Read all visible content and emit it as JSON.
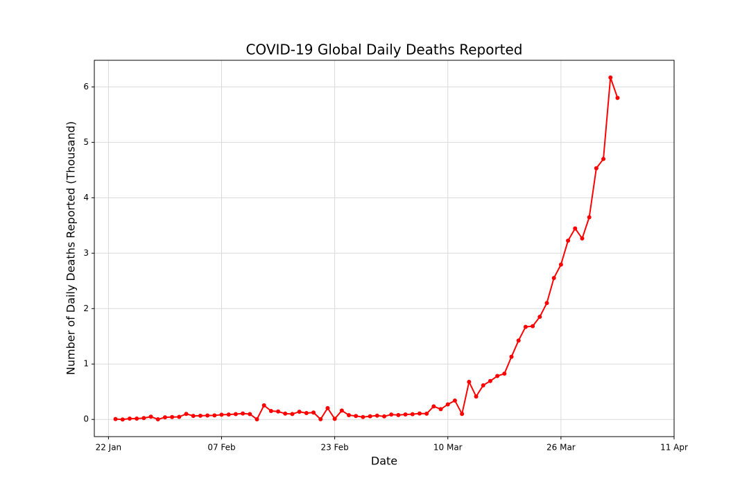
{
  "chart_data": {
    "type": "line",
    "title": "COVID-19 Global Daily Deaths Reported",
    "xlabel": "Date",
    "ylabel": "Number of Daily Deaths Reported (Thousand)",
    "x": [
      "01-23",
      "01-24",
      "01-25",
      "01-26",
      "01-27",
      "01-28",
      "01-29",
      "01-30",
      "01-31",
      "02-01",
      "02-02",
      "02-03",
      "02-04",
      "02-05",
      "02-06",
      "02-07",
      "02-08",
      "02-09",
      "02-10",
      "02-11",
      "02-12",
      "02-13",
      "02-14",
      "02-15",
      "02-16",
      "02-17",
      "02-18",
      "02-19",
      "02-20",
      "02-21",
      "02-22",
      "02-23",
      "02-24",
      "02-25",
      "02-26",
      "02-27",
      "02-28",
      "02-29",
      "03-01",
      "03-02",
      "03-03",
      "03-04",
      "03-05",
      "03-06",
      "03-07",
      "03-08",
      "03-09",
      "03-10",
      "03-11",
      "03-12",
      "03-13",
      "03-14",
      "03-15",
      "03-16",
      "03-17",
      "03-18",
      "03-19",
      "03-20",
      "03-21",
      "03-22",
      "03-23",
      "03-24",
      "03-25",
      "03-26",
      "03-27",
      "03-28",
      "03-29",
      "03-30",
      "03-31",
      "04-01",
      "04-02",
      "04-03"
    ],
    "series": [
      {
        "color": "#ff0000",
        "values": [
          0.008,
          0.0,
          0.015,
          0.015,
          0.025,
          0.05,
          0.002,
          0.038,
          0.043,
          0.046,
          0.1,
          0.064,
          0.066,
          0.072,
          0.073,
          0.086,
          0.089,
          0.097,
          0.108,
          0.097,
          0.003,
          0.254,
          0.152,
          0.143,
          0.105,
          0.098,
          0.139,
          0.115,
          0.125,
          0.004,
          0.205,
          0.011,
          0.16,
          0.078,
          0.062,
          0.044,
          0.058,
          0.069,
          0.055,
          0.089,
          0.079,
          0.09,
          0.095,
          0.107,
          0.104,
          0.236,
          0.185,
          0.272,
          0.341,
          0.099,
          0.678,
          0.414,
          0.616,
          0.693,
          0.784,
          0.826,
          1.131,
          1.424,
          1.671,
          1.683,
          1.851,
          2.1,
          2.552,
          2.795,
          3.225,
          3.446,
          3.266,
          3.648,
          4.532,
          4.699,
          6.169,
          5.801
        ]
      }
    ],
    "xlim": [
      "01-20",
      "04-11"
    ],
    "xticks": [
      {
        "value": "01-22",
        "label": "22 Jan"
      },
      {
        "value": "02-07",
        "label": "07 Feb"
      },
      {
        "value": "02-23",
        "label": "23 Feb"
      },
      {
        "value": "03-10",
        "label": "10 Mar"
      },
      {
        "value": "03-26",
        "label": "26 Mar"
      },
      {
        "value": "04-11",
        "label": "11 Apr"
      }
    ],
    "ylim": [
      -0.31,
      6.48
    ],
    "yticks": [
      0,
      1,
      2,
      3,
      4,
      5,
      6
    ],
    "grid": true
  }
}
